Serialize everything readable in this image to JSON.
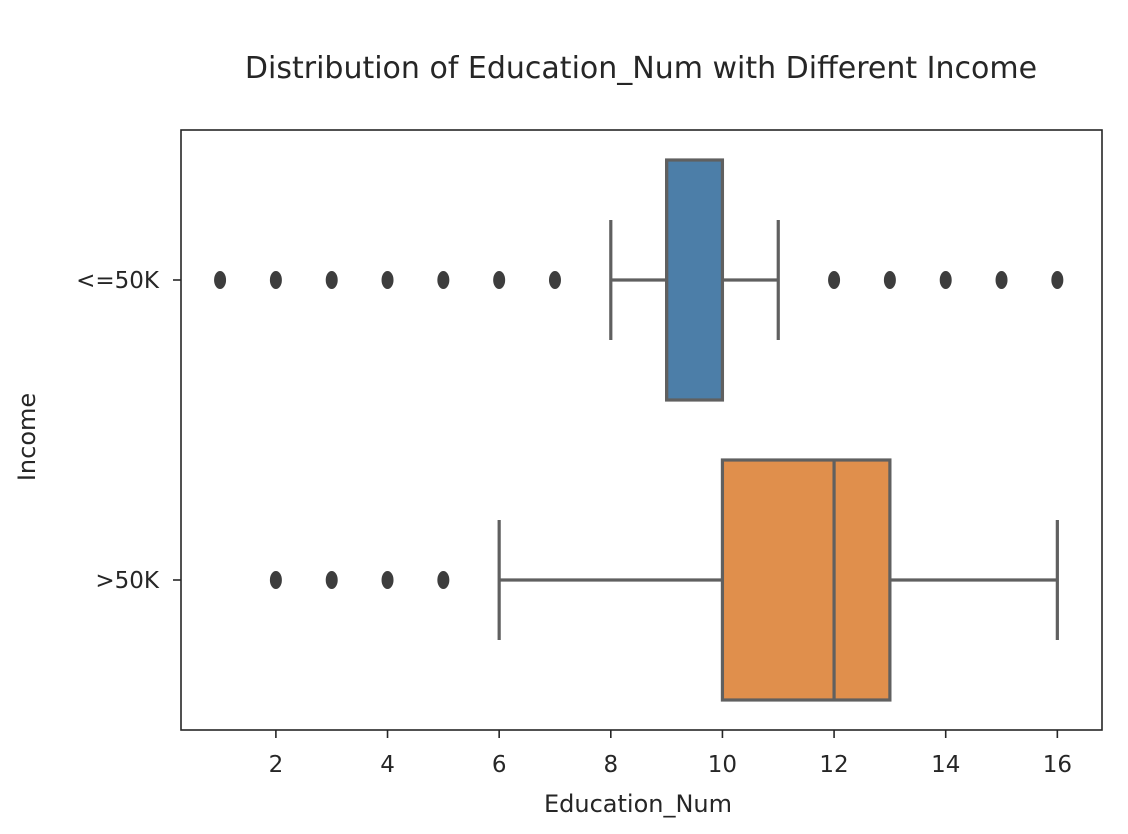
{
  "chart_data": {
    "type": "boxplot",
    "orientation": "horizontal",
    "title": "Distribution of Education_Num with Different Income",
    "xlabel": "Education_Num",
    "ylabel": "Income",
    "xlim": [
      0.3,
      16.8
    ],
    "x_ticks": [
      2,
      4,
      6,
      8,
      10,
      12,
      14,
      16
    ],
    "categories": [
      "<=50K",
      ">50K"
    ],
    "grid": false,
    "series": [
      {
        "category": "<=50K",
        "whisker_low": 8,
        "q1": 9,
        "median": 9,
        "q3": 10,
        "whisker_high": 11,
        "outliers": [
          1,
          2,
          3,
          4,
          5,
          6,
          7,
          12,
          13,
          14,
          15,
          16
        ],
        "color": "#4c7ea8"
      },
      {
        "category": ">50K",
        "whisker_low": 6,
        "q1": 10,
        "median": 12,
        "q3": 13,
        "whisker_high": 16,
        "outliers": [
          2,
          3,
          4,
          5
        ],
        "color": "#e08f4c"
      }
    ]
  }
}
